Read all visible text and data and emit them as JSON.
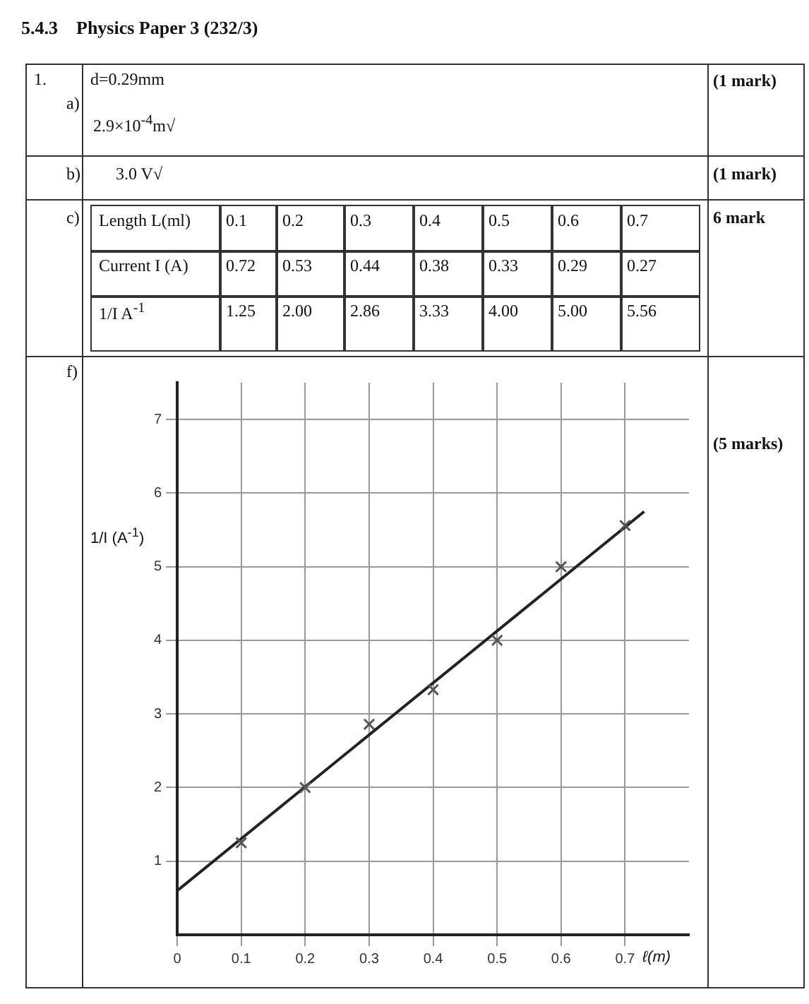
{
  "chart_data": {
    "type": "scatter",
    "title": "5.4.3    Physics Paper 3 (232/3)",
    "xlabel": "ℓ(m)",
    "ylabel": "1/I (A$^{-1}$)",
    "xlim": [
      0,
      0.8
    ],
    "ylim": [
      0,
      7.5
    ],
    "xticks": [
      0,
      0.1,
      0.2,
      0.3,
      0.4,
      0.5,
      0.6,
      0.7
    ],
    "yticks": [
      1,
      2,
      3,
      4,
      5,
      6,
      7
    ],
    "grid": true,
    "legend": false,
    "series": [
      {
        "marker": "cross",
        "color": "#555555",
        "x": [
          0.1,
          0.2,
          0.3,
          0.4,
          0.5,
          0.6,
          0.7
        ],
        "values": [
          1.25,
          2.0,
          2.86,
          3.33,
          4.0,
          5.0,
          5.56
        ]
      },
      {
        "type": "line",
        "color": "#222222",
        "x": [
          0,
          0.73
        ],
        "values": [
          0.6,
          5.75
        ]
      }
    ],
    "annotations": [
      "1.",
      "a)",
      "d=0.29mm",
      "2.9×10$^{-4}$m√",
      "(1 mark)",
      "b)",
      "3.0 V√",
      "(1 mark)",
      "c)",
      "Length L(ml)",
      "0.1",
      "0.2",
      "0.3",
      "0.4",
      "0.5",
      "0.6",
      "0.7",
      "Current I (A)",
      "0.72",
      "0.53",
      "0.44",
      "0.38",
      "0.33",
      "0.29",
      "0.27",
      "1/I A$^{-1}$",
      "1.25",
      "2.00",
      "2.86",
      "3.33",
      "4.00",
      "5.00",
      "5.56",
      "6 mark",
      "f)",
      "(5 marks)"
    ]
  }
}
